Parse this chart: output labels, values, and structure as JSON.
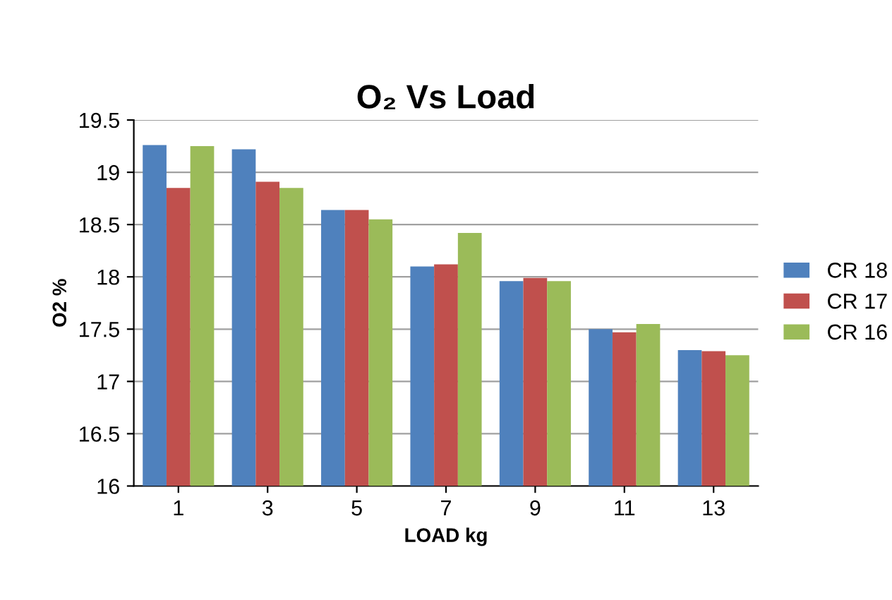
{
  "chart_data": {
    "type": "bar",
    "title": "O₂ Vs Load",
    "xlabel": "LOAD kg",
    "ylabel": "O2 %",
    "categories": [
      "1",
      "3",
      "5",
      "7",
      "9",
      "11",
      "13"
    ],
    "series": [
      {
        "name": "CR 18",
        "color": "#4f81bd",
        "values": [
          19.26,
          19.22,
          18.64,
          18.1,
          17.96,
          17.5,
          17.3
        ]
      },
      {
        "name": "CR 17",
        "color": "#c0504d",
        "values": [
          18.85,
          18.91,
          18.64,
          18.12,
          17.99,
          17.47,
          17.29
        ]
      },
      {
        "name": "CR 16",
        "color": "#9bbb59",
        "values": [
          19.25,
          18.85,
          18.55,
          18.42,
          17.96,
          17.55,
          17.25
        ]
      }
    ],
    "ylim": [
      16,
      19.5
    ],
    "yticks": [
      16,
      16.5,
      17,
      17.5,
      18,
      18.5,
      19,
      19.5
    ],
    "grid": "y",
    "legend": "right"
  }
}
